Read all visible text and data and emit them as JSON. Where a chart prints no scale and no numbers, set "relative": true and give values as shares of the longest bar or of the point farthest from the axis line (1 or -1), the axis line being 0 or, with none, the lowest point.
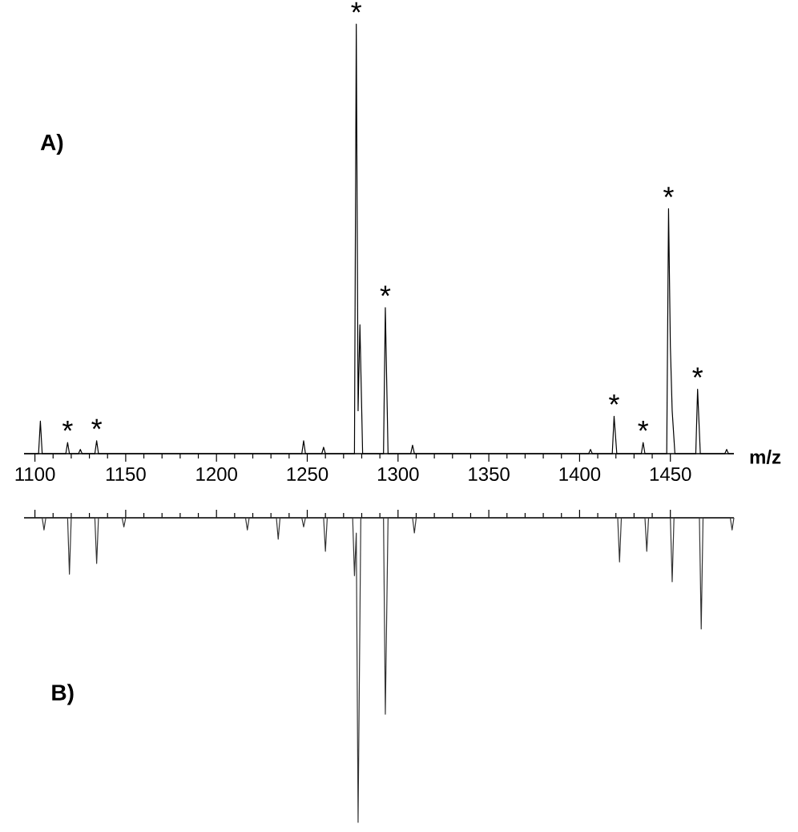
{
  "chart_data": [
    {
      "type": "line",
      "relative": true,
      "xlabel": "m/z",
      "xlim": [
        1094,
        1485
      ],
      "xticks": [
        1100,
        1150,
        1200,
        1250,
        1300,
        1350,
        1400,
        1450
      ],
      "tick_labels": "x",
      "series": [
        {
          "color": "#000000",
          "x": [
            1094,
            1102,
            1103,
            1104,
            1117,
            1118,
            1119,
            1124,
            1125,
            1126,
            1133,
            1134,
            1135,
            1247,
            1248,
            1249,
            1258,
            1259,
            1260,
            1276,
            1277,
            1278,
            1279,
            1280.5,
            1292,
            1293,
            1294.5,
            1307,
            1308,
            1309,
            1405,
            1406,
            1407,
            1418,
            1419,
            1420.5,
            1434,
            1435,
            1436,
            1448,
            1449,
            1450,
            1451,
            1452.5,
            1464,
            1465,
            1466.5,
            1480,
            1481,
            1482,
            1485
          ],
          "values": [
            0,
            0,
            0.076,
            0,
            0,
            0.026,
            0,
            0,
            0.01,
            0,
            0,
            0.03,
            0,
            0,
            0.03,
            0,
            0,
            0.015,
            0,
            0,
            1,
            0.1,
            0.3,
            0,
            0,
            0.34,
            0,
            0,
            0.02,
            0,
            0,
            0.01,
            0,
            0,
            0.087,
            0,
            0,
            0.026,
            0,
            0,
            0.57,
            0.25,
            0.1,
            0,
            0,
            0.15,
            0,
            0,
            0.01,
            0,
            0
          ]
        }
      ],
      "annotations": [
        "A)",
        {
          "text": "*",
          "x": 1118,
          "y": 0.026
        },
        {
          "text": "*",
          "x": 1134,
          "y": 0.03
        },
        {
          "text": "*",
          "x": 1277,
          "y": 1
        },
        {
          "text": "*",
          "x": 1293,
          "y": 0.34
        },
        {
          "text": "*",
          "x": 1419,
          "y": 0.087
        },
        {
          "text": "*",
          "x": 1435,
          "y": 0.026
        },
        {
          "text": "*",
          "x": 1449,
          "y": 0.57
        },
        {
          "text": "*",
          "x": 1465,
          "y": 0.15
        }
      ]
    },
    {
      "type": "line",
      "relative": true,
      "xlim": [
        1094,
        1485
      ],
      "xticks": [
        {
          "value": 1100,
          "label": null
        },
        {
          "value": 1150,
          "label": null
        },
        {
          "value": 1200,
          "label": null
        },
        {
          "value": 1250,
          "label": null
        },
        {
          "value": 1300,
          "label": null
        },
        {
          "value": 1350,
          "label": null
        },
        {
          "value": 1400,
          "label": null
        },
        {
          "value": 1450,
          "label": null
        }
      ],
      "tick_labels": false,
      "series": [
        {
          "color": "#333333",
          "x": [
            1094,
            1104,
            1105,
            1106,
            1118,
            1119,
            1120,
            1133,
            1134,
            1135,
            1148,
            1149,
            1150,
            1216,
            1217,
            1218,
            1233,
            1234,
            1235,
            1247,
            1248,
            1249,
            1259,
            1260,
            1261,
            1275,
            1276,
            1277,
            1278,
            1279.5,
            1292,
            1293,
            1294.5,
            1308,
            1309,
            1310,
            1421,
            1422,
            1423,
            1436,
            1437,
            1438,
            1450,
            1451,
            1452,
            1466,
            1467,
            1468,
            1483,
            1484,
            1485
          ],
          "values": [
            0,
            0,
            -0.04,
            0,
            0,
            -0.185,
            0,
            0,
            -0.15,
            0,
            0,
            -0.03,
            0,
            0,
            -0.04,
            0,
            0,
            -0.07,
            0,
            0,
            -0.03,
            0,
            0,
            -0.11,
            0,
            0,
            -0.19,
            -0.05,
            -1,
            0,
            0,
            -0.645,
            0,
            0,
            -0.05,
            0,
            0,
            -0.145,
            0,
            0,
            -0.11,
            0,
            0,
            -0.21,
            0,
            0,
            -0.365,
            0,
            0,
            -0.04,
            0
          ]
        }
      ],
      "annotations": [
        "B)"
      ]
    }
  ]
}
